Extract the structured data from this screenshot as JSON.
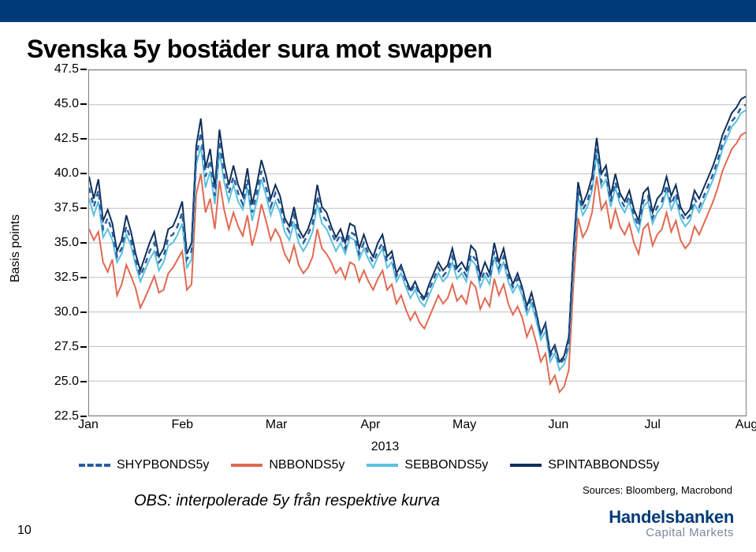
{
  "title": "Svenska 5y bostäder sura mot swappen",
  "ylabel": "Basis points",
  "ylim": [
    22.5,
    47.5
  ],
  "ytick_step": 2.5,
  "yticks": [
    "22.5",
    "25.0",
    "27.5",
    "30.0",
    "32.5",
    "35.0",
    "37.5",
    "40.0",
    "42.5",
    "45.0",
    "47.5"
  ],
  "xlabels": [
    "Jan",
    "Feb",
    "Mar",
    "Apr",
    "May",
    "Jun",
    "Jul",
    "Aug"
  ],
  "xyear": "2013",
  "grid_color": "#bfbfbf",
  "border_color": "#7f7f7f",
  "background_color": "#ffffff",
  "series": [
    {
      "name": "NBBONDS5y",
      "color": "#e26952",
      "dash": "solid",
      "width": 2,
      "values": [
        36.0,
        35.2,
        35.8,
        33.6,
        32.9,
        33.8,
        31.2,
        32.0,
        33.4,
        32.6,
        31.7,
        30.3,
        31.0,
        31.8,
        32.6,
        31.4,
        31.6,
        32.8,
        33.2,
        33.8,
        34.4,
        31.6,
        32.0,
        38.5,
        40.0,
        37.2,
        38.2,
        36.0,
        39.5,
        37.4,
        36.0,
        37.2,
        36.2,
        35.5,
        37.0,
        34.8,
        36.0,
        37.8,
        36.6,
        35.2,
        36.0,
        35.4,
        34.2,
        33.6,
        34.8,
        33.4,
        32.8,
        33.2,
        34.0,
        36.0,
        34.6,
        34.2,
        33.6,
        32.8,
        33.2,
        32.4,
        33.6,
        33.4,
        32.2,
        33.0,
        32.2,
        31.6,
        32.4,
        33.0,
        31.6,
        32.0,
        30.6,
        31.2,
        30.2,
        29.4,
        30.0,
        29.2,
        28.8,
        29.6,
        30.4,
        31.2,
        30.6,
        31.0,
        32.0,
        30.8,
        31.2,
        30.6,
        32.2,
        31.8,
        30.2,
        31.0,
        30.4,
        32.4,
        31.2,
        32.0,
        30.6,
        29.8,
        30.4,
        29.6,
        28.2,
        29.0,
        27.8,
        26.4,
        27.0,
        24.8,
        25.4,
        24.2,
        24.6,
        25.8,
        32.0,
        36.8,
        35.4,
        36.0,
        37.2,
        39.8,
        37.4,
        38.0,
        36.0,
        37.4,
        36.2,
        35.6,
        36.4,
        35.0,
        34.2,
        36.0,
        36.4,
        34.8,
        35.6,
        36.0,
        37.2,
        35.8,
        36.6,
        35.2,
        34.6,
        35.0,
        36.2,
        35.6,
        36.4,
        37.2,
        38.0,
        39.0,
        40.2,
        41.0,
        41.8,
        42.2,
        42.8,
        43.0
      ]
    },
    {
      "name": "SEBBONDS5y",
      "color": "#5bc0de",
      "dash": "solid",
      "width": 2,
      "values": [
        38.2,
        37.0,
        38.0,
        35.4,
        36.0,
        35.2,
        33.6,
        34.2,
        35.6,
        34.8,
        33.4,
        32.2,
        33.0,
        33.8,
        34.4,
        33.0,
        33.6,
        34.8,
        35.0,
        35.6,
        36.4,
        33.2,
        33.8,
        40.6,
        42.0,
        39.0,
        40.2,
        37.8,
        41.6,
        39.4,
        38.0,
        39.2,
        38.0,
        37.4,
        39.0,
        36.6,
        38.0,
        39.6,
        38.4,
        37.0,
        38.0,
        37.2,
        35.8,
        35.2,
        36.4,
        35.0,
        34.4,
        35.0,
        35.8,
        37.8,
        36.4,
        36.0,
        35.2,
        34.4,
        35.0,
        34.2,
        35.4,
        35.2,
        33.8,
        34.6,
        33.8,
        33.2,
        34.0,
        34.6,
        33.2,
        33.6,
        32.2,
        32.8,
        31.8,
        31.0,
        31.6,
        30.8,
        30.4,
        31.2,
        32.0,
        32.8,
        32.2,
        32.6,
        33.6,
        32.4,
        32.8,
        32.2,
        33.8,
        33.4,
        31.8,
        32.6,
        32.0,
        34.0,
        32.8,
        33.6,
        32.2,
        31.4,
        32.0,
        31.2,
        29.8,
        30.6,
        29.4,
        28.0,
        28.6,
        26.4,
        27.0,
        25.8,
        26.2,
        27.4,
        33.6,
        38.4,
        37.0,
        37.6,
        38.8,
        41.4,
        39.0,
        39.6,
        37.6,
        39.0,
        37.8,
        37.2,
        38.0,
        36.6,
        35.8,
        37.6,
        38.0,
        36.4,
        37.2,
        37.6,
        38.8,
        37.4,
        38.2,
        36.8,
        36.2,
        36.6,
        37.8,
        37.2,
        38.0,
        38.8,
        39.6,
        40.6,
        41.8,
        42.6,
        43.4,
        43.8,
        44.4,
        44.6
      ]
    },
    {
      "name": "SPINTABBONDS5y",
      "color": "#0e2f5a",
      "dash": "solid",
      "width": 2,
      "values": [
        39.8,
        38.2,
        39.6,
        36.6,
        37.4,
        36.4,
        34.4,
        35.2,
        37.0,
        35.8,
        34.2,
        33.0,
        34.0,
        35.0,
        35.8,
        34.0,
        34.6,
        36.0,
        36.2,
        37.0,
        38.0,
        34.2,
        35.0,
        42.0,
        44.0,
        40.4,
        41.8,
        39.0,
        43.2,
        40.8,
        39.2,
        40.6,
        39.2,
        38.4,
        40.4,
        37.8,
        39.2,
        41.0,
        39.8,
        38.2,
        39.2,
        38.4,
        36.8,
        36.2,
        37.6,
        36.0,
        35.4,
        36.0,
        37.0,
        39.2,
        37.6,
        37.2,
        36.2,
        35.4,
        36.0,
        35.0,
        36.4,
        36.2,
        34.6,
        35.6,
        34.6,
        34.0,
        35.0,
        35.6,
        34.0,
        34.4,
        32.8,
        33.4,
        32.4,
        31.6,
        32.2,
        31.4,
        31.0,
        32.0,
        32.8,
        33.6,
        33.0,
        33.4,
        34.6,
        33.2,
        33.6,
        33.0,
        34.8,
        34.4,
        32.6,
        33.6,
        32.8,
        35.0,
        33.6,
        34.6,
        33.0,
        32.0,
        32.8,
        31.8,
        30.4,
        31.4,
        30.0,
        28.4,
        29.2,
        27.0,
        27.6,
        26.4,
        26.8,
        28.2,
        34.6,
        39.4,
        37.8,
        38.6,
        39.8,
        42.6,
        40.0,
        40.6,
        38.4,
        40.0,
        38.6,
        38.0,
        38.8,
        37.4,
        36.6,
        38.6,
        39.0,
        37.2,
        38.2,
        38.6,
        39.8,
        38.4,
        39.2,
        37.6,
        37.0,
        37.4,
        38.8,
        38.2,
        39.0,
        39.8,
        40.6,
        41.6,
        42.8,
        43.6,
        44.4,
        44.8,
        45.4,
        45.6
      ]
    },
    {
      "name": "SHYPBONDS5y",
      "color": "#2a5d9f",
      "dash": "dashed",
      "width": 2.5,
      "values": [
        39.0,
        37.6,
        38.8,
        36.0,
        36.8,
        35.8,
        34.0,
        34.6,
        36.2,
        35.2,
        33.8,
        32.6,
        33.4,
        34.4,
        35.0,
        33.6,
        34.0,
        35.4,
        35.6,
        36.2,
        37.2,
        33.8,
        34.4,
        41.2,
        43.0,
        39.8,
        41.0,
        38.4,
        42.4,
        40.0,
        38.6,
        39.8,
        38.6,
        37.8,
        39.6,
        37.2,
        38.6,
        40.2,
        39.0,
        37.6,
        38.6,
        37.8,
        36.4,
        35.8,
        37.0,
        35.6,
        35.0,
        35.6,
        36.4,
        38.4,
        37.0,
        36.6,
        35.8,
        35.0,
        35.6,
        34.6,
        35.8,
        35.6,
        34.2,
        35.0,
        34.2,
        33.6,
        34.4,
        35.0,
        33.6,
        34.0,
        32.6,
        33.2,
        32.2,
        31.4,
        32.0,
        31.2,
        30.8,
        31.6,
        32.4,
        33.2,
        32.6,
        33.0,
        34.0,
        32.8,
        33.2,
        32.6,
        34.2,
        33.8,
        32.2,
        33.0,
        32.4,
        34.4,
        33.2,
        34.0,
        32.6,
        31.8,
        32.4,
        31.6,
        30.2,
        31.0,
        29.8,
        28.4,
        29.0,
        26.8,
        27.4,
        26.2,
        26.6,
        27.8,
        34.0,
        38.8,
        37.4,
        38.0,
        39.2,
        41.8,
        39.4,
        40.0,
        38.0,
        39.4,
        38.2,
        37.6,
        38.4,
        37.0,
        36.2,
        38.0,
        38.4,
        36.8,
        37.6,
        38.0,
        39.2,
        37.8,
        38.6,
        37.2,
        36.6,
        37.0,
        38.2,
        37.6,
        38.4,
        39.2,
        40.0,
        41.0,
        42.2,
        43.0,
        43.8,
        44.2,
        44.8,
        45.0
      ]
    }
  ],
  "legend_order": [
    "SHYPBONDS5y",
    "NBBONDS5y",
    "SEBBONDS5y",
    "SPINTABBONDS5y"
  ],
  "caption": "OBS: interpolerade 5y från respektive kurva",
  "source": "Sources: Bloomberg, Macrobond",
  "page_number": "10",
  "logo_main": "Handelsbanken",
  "logo_sub": "Capital Markets",
  "topbar_color": "#003a78",
  "title_fontsize": 32,
  "label_fontsize": 16
}
